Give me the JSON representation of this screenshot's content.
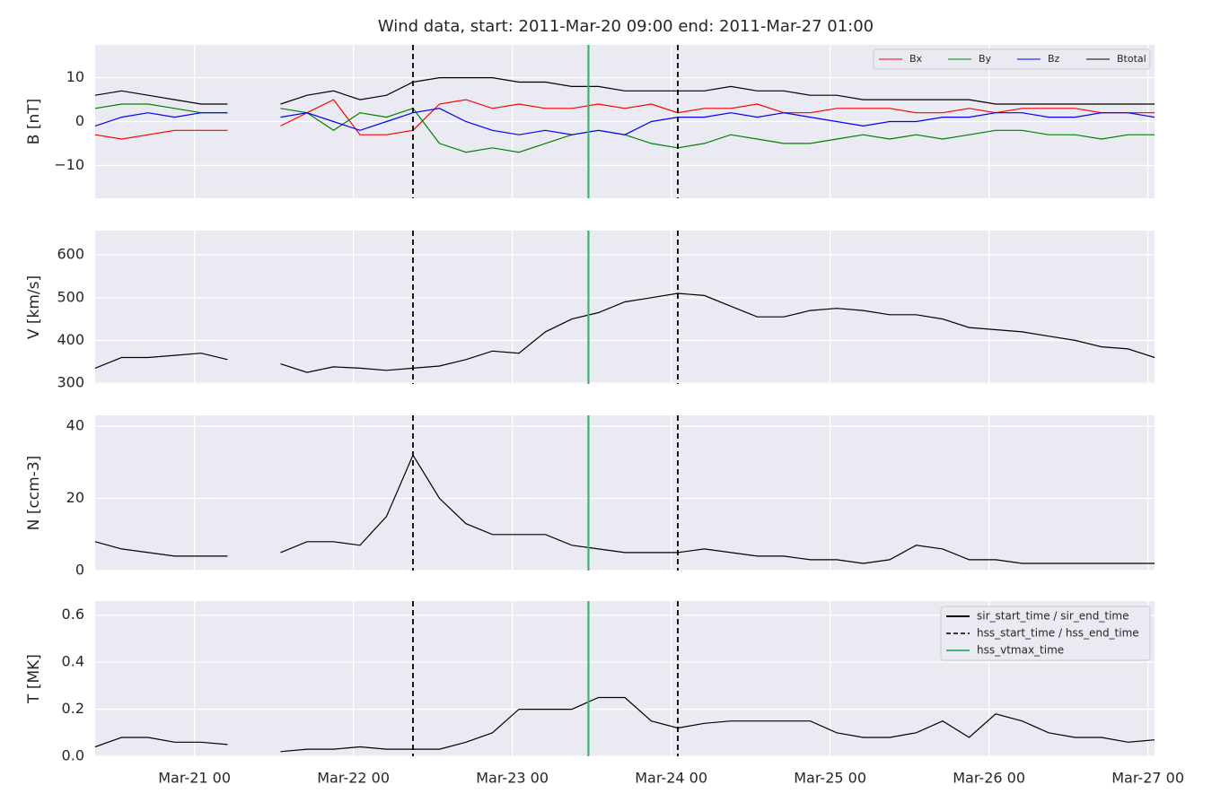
{
  "chart_data": {
    "type": "line",
    "title": "Wind data, start: 2011-Mar-20 09:00  end: 2011-Mar-27 01:00",
    "x": [
      "2011-03-20 09:00",
      "2011-03-20 13:00",
      "2011-03-20 17:00",
      "2011-03-20 21:00",
      "2011-03-21 01:00",
      "2011-03-21 05:00",
      "2011-03-21 09:00",
      "2011-03-21 13:00",
      "2011-03-21 17:00",
      "2011-03-21 21:00",
      "2011-03-22 01:00",
      "2011-03-22 05:00",
      "2011-03-22 09:00",
      "2011-03-22 13:00",
      "2011-03-22 17:00",
      "2011-03-22 21:00",
      "2011-03-23 01:00",
      "2011-03-23 05:00",
      "2011-03-23 09:00",
      "2011-03-23 13:00",
      "2011-03-23 17:00",
      "2011-03-23 21:00",
      "2011-03-24 01:00",
      "2011-03-24 05:00",
      "2011-03-24 09:00",
      "2011-03-24 13:00",
      "2011-03-24 17:00",
      "2011-03-24 21:00",
      "2011-03-25 01:00",
      "2011-03-25 05:00",
      "2011-03-25 09:00",
      "2011-03-25 13:00",
      "2011-03-25 17:00",
      "2011-03-25 21:00",
      "2011-03-26 01:00",
      "2011-03-26 05:00",
      "2011-03-26 09:00",
      "2011-03-26 13:00",
      "2011-03-26 17:00",
      "2011-03-26 21:00",
      "2011-03-27 01:00"
    ],
    "xlim": [
      "2011-03-20 09:00",
      "2011-03-27 01:00"
    ],
    "xticks": [
      {
        "value": "2011-03-21 00:00",
        "label": "Mar-21 00"
      },
      {
        "value": "2011-03-22 00:00",
        "label": "Mar-22 00"
      },
      {
        "value": "2011-03-23 00:00",
        "label": "Mar-23 00"
      },
      {
        "value": "2011-03-24 00:00",
        "label": "Mar-24 00"
      },
      {
        "value": "2011-03-25 00:00",
        "label": "Mar-25 00"
      },
      {
        "value": "2011-03-26 00:00",
        "label": "Mar-26 00"
      },
      {
        "value": "2011-03-27 00:00",
        "label": "Mar-27 00"
      }
    ],
    "grid": true,
    "panels": [
      {
        "ylabel": "B [nT]",
        "ylim": [
          -17.5,
          17.5
        ],
        "yticks": [
          {
            "value": -10,
            "label": "−10"
          },
          0,
          10
        ],
        "legend": "upper right",
        "series": [
          {
            "name": "Bx",
            "color": "#ff0000",
            "values": [
              -3,
              -4,
              -3,
              -2,
              -2,
              -2,
              null,
              -1,
              2,
              5,
              -3,
              -3,
              -2,
              4,
              5,
              3,
              4,
              3,
              3,
              4,
              3,
              4,
              2,
              3,
              3,
              4,
              2,
              2,
              3,
              3,
              3,
              2,
              2,
              3,
              2,
              3,
              3,
              3,
              2,
              2,
              2
            ]
          },
          {
            "name": "By",
            "color": "#008000",
            "values": [
              3,
              4,
              4,
              3,
              2,
              2,
              null,
              3,
              2,
              -2,
              2,
              1,
              3,
              -5,
              -7,
              -6,
              -7,
              -5,
              -3,
              -2,
              -3,
              -5,
              -6,
              -5,
              -3,
              -4,
              -5,
              -5,
              -4,
              -3,
              -4,
              -3,
              -4,
              -3,
              -2,
              -2,
              -3,
              -3,
              -4,
              -3,
              -3
            ]
          },
          {
            "name": "Bz",
            "color": "#0000ff",
            "values": [
              -1,
              1,
              2,
              1,
              2,
              2,
              null,
              1,
              2,
              0,
              -2,
              0,
              2,
              3,
              0,
              -2,
              -3,
              -2,
              -3,
              -2,
              -3,
              0,
              1,
              1,
              2,
              1,
              2,
              1,
              0,
              -1,
              0,
              0,
              1,
              1,
              2,
              2,
              1,
              1,
              2,
              2,
              1
            ]
          },
          {
            "name": "Btotal",
            "color": "#000000",
            "values": [
              6,
              7,
              6,
              5,
              4,
              4,
              null,
              4,
              6,
              7,
              5,
              6,
              9,
              10,
              10,
              10,
              9,
              9,
              8,
              8,
              7,
              7,
              7,
              7,
              8,
              7,
              7,
              6,
              6,
              5,
              5,
              5,
              5,
              5,
              4,
              4,
              4,
              4,
              4,
              4,
              4
            ]
          }
        ]
      },
      {
        "ylabel": "V [km/s]",
        "ylim": [
          298,
          657
        ],
        "yticks": [
          300,
          400,
          500,
          600
        ],
        "series": [
          {
            "color": "#000000",
            "values": [
              335,
              360,
              360,
              365,
              370,
              355,
              null,
              345,
              325,
              338,
              335,
              330,
              335,
              340,
              355,
              375,
              370,
              420,
              450,
              465,
              490,
              500,
              510,
              505,
              480,
              455,
              455,
              470,
              475,
              470,
              460,
              460,
              450,
              430,
              425,
              420,
              410,
              400,
              385,
              380,
              360
            ]
          }
        ]
      },
      {
        "ylabel": "N [ccm-3]",
        "ylim": [
          0,
          43
        ],
        "yticks": [
          0,
          20,
          40
        ],
        "series": [
          {
            "color": "#000000",
            "values": [
              8,
              6,
              5,
              4,
              4,
              4,
              null,
              5,
              8,
              8,
              7,
              15,
              32,
              20,
              13,
              10,
              10,
              10,
              7,
              6,
              5,
              5,
              5,
              6,
              5,
              4,
              4,
              3,
              3,
              2,
              3,
              7,
              6,
              3,
              3,
              2,
              2,
              2,
              2,
              2,
              2
            ]
          }
        ]
      },
      {
        "ylabel": "T [MK]",
        "ylim": [
          0,
          0.66
        ],
        "yticks": [
          {
            "value": 0,
            "label": "0.0"
          },
          0.2,
          0.4,
          0.6
        ],
        "series": [
          {
            "color": "#000000",
            "values": [
              0.04,
              0.08,
              0.08,
              0.06,
              0.06,
              0.05,
              null,
              0.02,
              0.03,
              0.03,
              0.04,
              0.03,
              0.03,
              0.03,
              0.06,
              0.1,
              0.2,
              0.2,
              0.2,
              0.25,
              0.25,
              0.15,
              0.12,
              0.14,
              0.15,
              0.15,
              0.15,
              0.15,
              0.1,
              0.08,
              0.08,
              0.1,
              0.15,
              0.08,
              0.18,
              0.15,
              0.1,
              0.08,
              0.08,
              0.06,
              0.07
            ]
          }
        ]
      }
    ],
    "events": [
      {
        "name": "sir_start_time / sir_end_time",
        "color": "#000000",
        "style": "solid"
      },
      {
        "name": "hss_start_time / hss_end_time",
        "color": "#000000",
        "style": "dashed",
        "times": [
          "2011-03-22 09:00",
          "2011-03-24 01:00"
        ]
      },
      {
        "name": "hss_vtmax_time",
        "color": "#3cb371",
        "style": "solid",
        "times": [
          "2011-03-23 11:30"
        ]
      }
    ],
    "events_legend": "upper right"
  }
}
